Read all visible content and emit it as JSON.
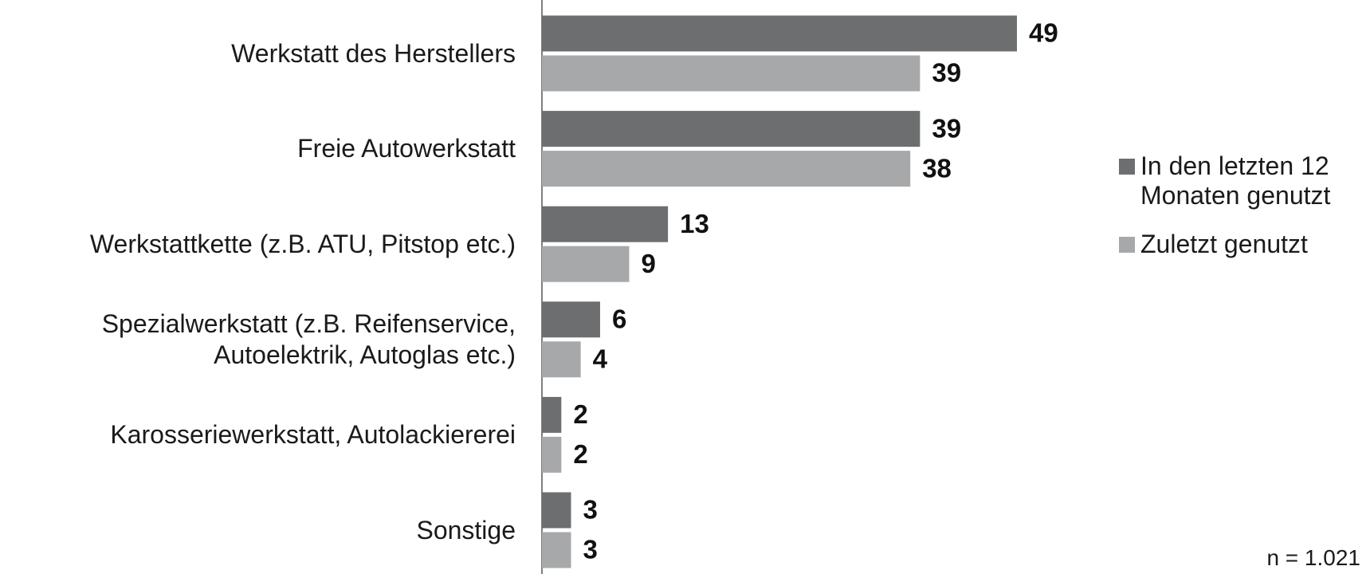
{
  "chart_data": {
    "type": "bar",
    "orientation": "horizontal",
    "categories": [
      "Werkstatt des Herstellers",
      "Freie Autowerkstatt",
      "Werkstattkette (z.B. ATU, Pitstop etc.)",
      "Spezialwerkstatt (z.B. Reifenservice, Autoelektrik, Autoglas etc.)",
      "Karosseriewerkstatt, Autolackiererei",
      "Sonstige"
    ],
    "series": [
      {
        "name": "In den letzten 12 Monaten genutzt",
        "color": "#6d6e70",
        "values": [
          49,
          39,
          13,
          6,
          2,
          3
        ]
      },
      {
        "name": "Zuletzt genutzt",
        "color": "#a7a8aa",
        "values": [
          39,
          38,
          9,
          4,
          2,
          3
        ]
      }
    ],
    "legend": "right",
    "note": "n = 1.021"
  }
}
